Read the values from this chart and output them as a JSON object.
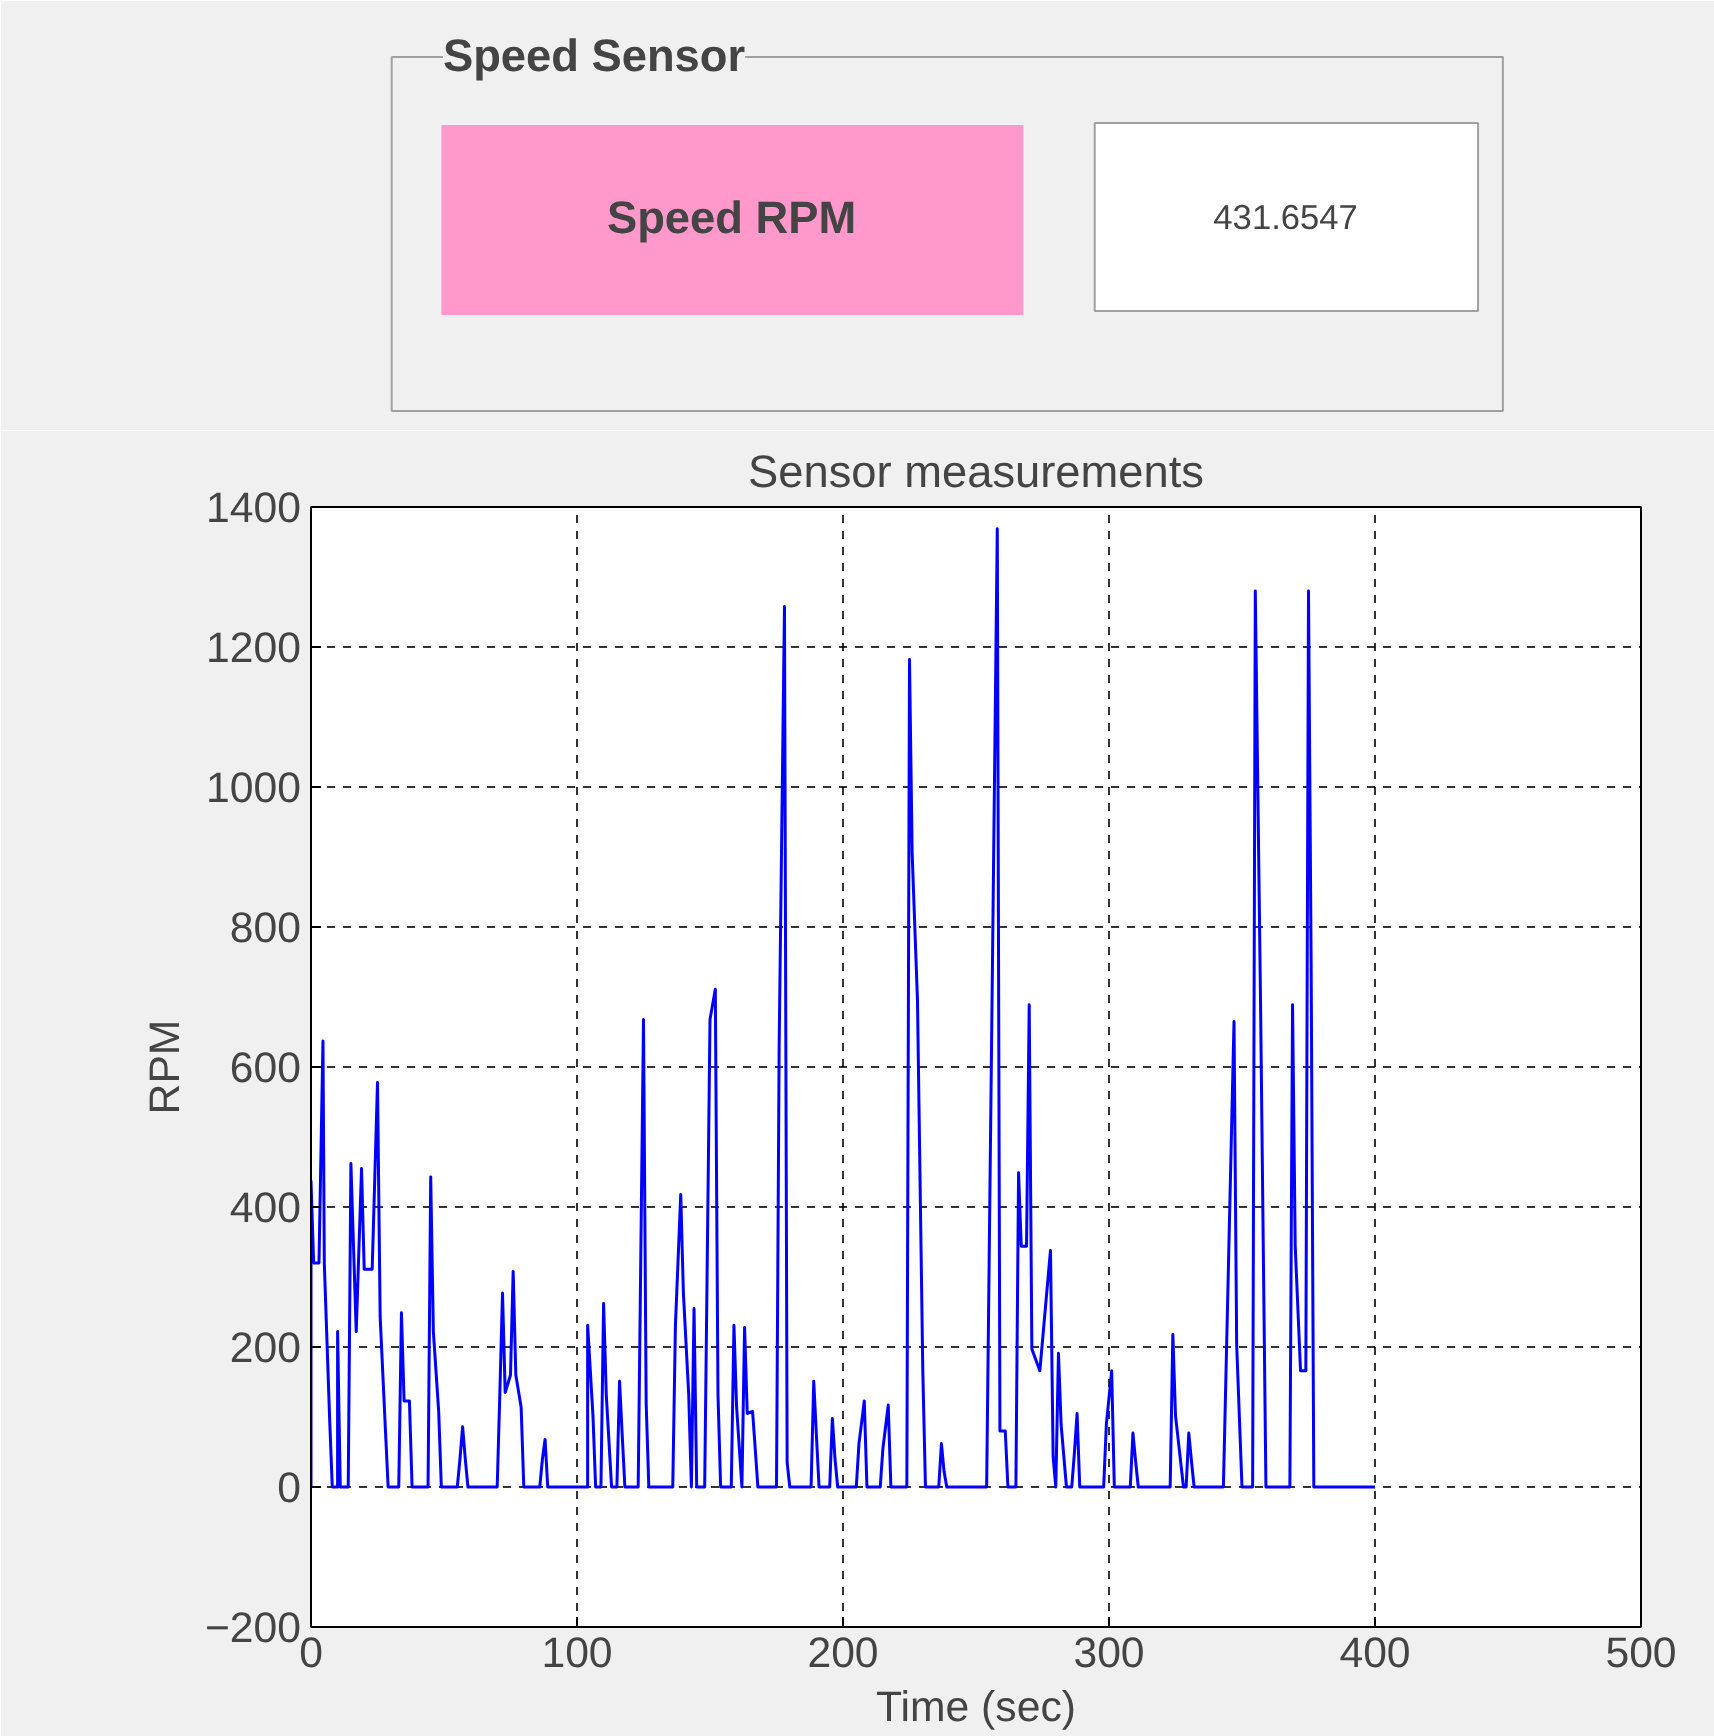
{
  "chart_data": {
    "type": "line",
    "title": "Sensor measurements",
    "xlabel": "Time (sec)",
    "ylabel": "RPM",
    "annotations": [
      "Speed Sensor",
      "Speed RPM",
      "431.6547"
    ],
    "xlim": [
      0,
      500
    ],
    "xticks": [
      0,
      100,
      200,
      300,
      400,
      500
    ],
    "ylim": [
      -200,
      1400
    ],
    "yticks": [
      -200,
      0,
      200,
      400,
      600,
      800,
      1000,
      1200,
      1400
    ],
    "grid": true,
    "line_style": "solid",
    "marker": "none",
    "series": [
      {
        "color": "#0000ff",
        "x": [
          0,
          0,
          1,
          3,
          4.5,
          5,
          7,
          8,
          10,
          10,
          11,
          14,
          15,
          17,
          19,
          20,
          23,
          25,
          26,
          28,
          29,
          33,
          34,
          35,
          37,
          38,
          44,
          45,
          46,
          48,
          49,
          55,
          56,
          57,
          58,
          59,
          70,
          71,
          72,
          73,
          75,
          76,
          77,
          79,
          80,
          86,
          87,
          88,
          89,
          104,
          104,
          106,
          107,
          109,
          110,
          111,
          113,
          115,
          116,
          117,
          118,
          123,
          124,
          125,
          126,
          127,
          136,
          137,
          139,
          140,
          142,
          143,
          144,
          145,
          148,
          149,
          150,
          152,
          153,
          154,
          158,
          159,
          160,
          162,
          163,
          164,
          166,
          167,
          168,
          175,
          176,
          178,
          179,
          180,
          188,
          189,
          190,
          191,
          195,
          196,
          197,
          198,
          205,
          206,
          208,
          209,
          214,
          215,
          217,
          218,
          224,
          225,
          226,
          228,
          230,
          231,
          236,
          237,
          238,
          239,
          254,
          256,
          258,
          259,
          261,
          262,
          265,
          266,
          267,
          269,
          270,
          271,
          274,
          278,
          279,
          280,
          281,
          282,
          284,
          286,
          287,
          288,
          289,
          298,
          299,
          301,
          302,
          308,
          309,
          310,
          311,
          323,
          324,
          325,
          328,
          329,
          330,
          331,
          332,
          343,
          345,
          347,
          348,
          350,
          354,
          355,
          357,
          359,
          368,
          369,
          370,
          372,
          374,
          375,
          376,
          377,
          400
        ],
        "values": [
          0,
          437,
          320,
          320,
          637,
          320,
          98,
          0,
          0,
          222,
          0,
          0,
          462,
          222,
          455,
          311,
          311,
          578,
          243,
          80,
          0,
          0,
          249,
          123,
          123,
          0,
          0,
          443,
          222,
          108,
          0,
          0,
          40,
          86,
          40,
          0,
          0,
          135,
          277,
          135,
          160,
          308,
          160,
          114,
          0,
          0,
          40,
          68,
          0,
          0,
          231,
          102,
          0,
          0,
          262,
          132,
          0,
          0,
          151,
          74,
          0,
          0,
          335,
          668,
          120,
          0,
          0,
          231,
          418,
          277,
          132,
          0,
          255,
          0,
          0,
          335,
          668,
          711,
          132,
          0,
          0,
          231,
          114,
          0,
          228,
          105,
          108,
          55,
          0,
          0,
          631,
          1258,
          35,
          0,
          0,
          151,
          74,
          0,
          0,
          98,
          40,
          0,
          0,
          62,
          123,
          0,
          0,
          55,
          117,
          0,
          0,
          1182,
          905,
          695,
          166,
          0,
          0,
          62,
          22,
          0,
          0,
          683,
          1369,
          80,
          80,
          0,
          0,
          449,
          344,
          344,
          689,
          197,
          166,
          338,
          43,
          0,
          191,
          89,
          0,
          0,
          49,
          105,
          0,
          0,
          89,
          166,
          0,
          0,
          77,
          37,
          0,
          0,
          218,
          102,
          0,
          0,
          77,
          37,
          0,
          0,
          332,
          665,
          203,
          0,
          0,
          1280,
          683,
          0,
          0,
          689,
          345,
          166,
          166,
          1280,
          741,
          0,
          0
        ]
      }
    ]
  }
}
